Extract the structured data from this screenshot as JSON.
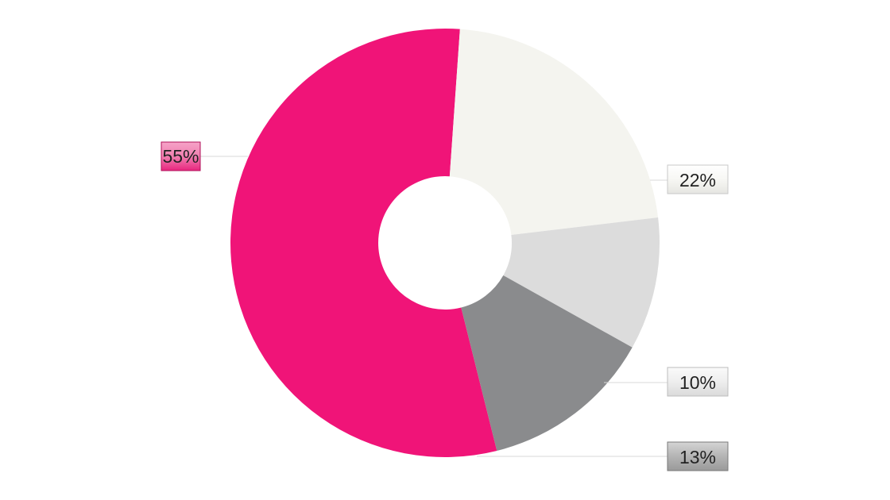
{
  "chart_data": {
    "type": "pie",
    "donut": true,
    "slices": [
      {
        "label": "55%",
        "value": 55,
        "color": "#F01478"
      },
      {
        "label": "22%",
        "value": 22,
        "color": "#F4F4EF"
      },
      {
        "label": "10%",
        "value": 10,
        "color": "#DCDCDC"
      },
      {
        "label": "13%",
        "value": 13,
        "color": "#8A8B8D"
      }
    ]
  }
}
